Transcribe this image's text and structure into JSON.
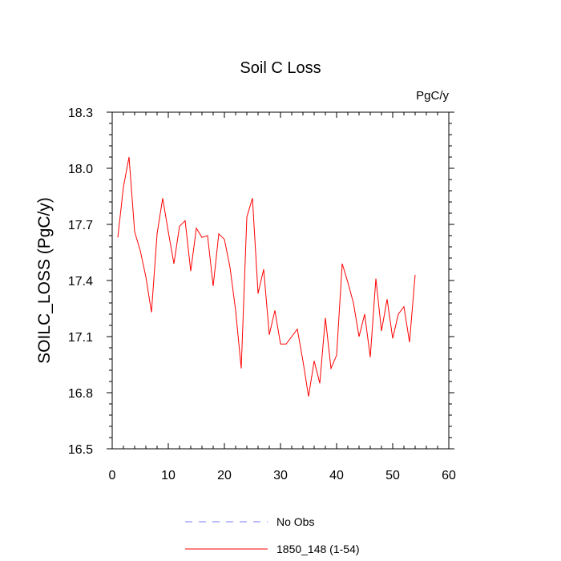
{
  "chart_data": {
    "type": "line",
    "title": "Soil C Loss",
    "units": "PgC/y",
    "ylabel": "SOILC_LOSS  (PgC/y)",
    "xlabel": "",
    "xlim": [
      0,
      60
    ],
    "ylim": [
      16.5,
      18.3
    ],
    "xticks": [
      0,
      10,
      20,
      30,
      40,
      50,
      60
    ],
    "xtick_labels": [
      "0",
      "10",
      "20",
      "30",
      "40",
      "50",
      "60"
    ],
    "yticks": [
      16.5,
      16.8,
      17.1,
      17.4,
      17.7,
      18.0,
      18.3
    ],
    "ytick_labels": [
      "16.5",
      "16.8",
      "17.1",
      "17.4",
      "17.7",
      "18.0",
      "18.3"
    ],
    "grid": false,
    "legend_position": "bottom-center",
    "series": [
      {
        "name": "1850_148 (1-54)",
        "color": "#ff0000",
        "dash": "solid",
        "x": [
          1,
          2,
          3,
          4,
          5,
          6,
          7,
          8,
          9,
          10,
          11,
          12,
          13,
          14,
          15,
          16,
          17,
          18,
          19,
          20,
          21,
          22,
          23,
          24,
          25,
          26,
          27,
          28,
          29,
          30,
          31,
          32,
          33,
          34,
          35,
          36,
          37,
          38,
          39,
          40,
          41,
          42,
          43,
          44,
          45,
          46,
          47,
          48,
          49,
          50,
          51,
          52,
          53,
          54
        ],
        "values": [
          17.63,
          17.9,
          18.06,
          17.66,
          17.56,
          17.42,
          17.23,
          17.65,
          17.84,
          17.66,
          17.49,
          17.69,
          17.72,
          17.45,
          17.68,
          17.63,
          17.64,
          17.37,
          17.65,
          17.62,
          17.47,
          17.24,
          16.93,
          17.74,
          17.84,
          17.33,
          17.46,
          17.11,
          17.24,
          17.06,
          17.06,
          17.1,
          17.14,
          16.97,
          16.78,
          16.97,
          16.85,
          17.2,
          16.93,
          17.0,
          17.49,
          17.39,
          17.28,
          17.1,
          17.22,
          16.99,
          17.41,
          17.13,
          17.3,
          17.09,
          17.22,
          17.26,
          17.07,
          17.43
        ]
      }
    ],
    "legend": [
      {
        "name": "No Obs",
        "color": "#7777ff",
        "dash": "dashed"
      },
      {
        "name": "1850_148 (1-54)",
        "color": "#ff0000",
        "dash": "solid"
      }
    ]
  }
}
